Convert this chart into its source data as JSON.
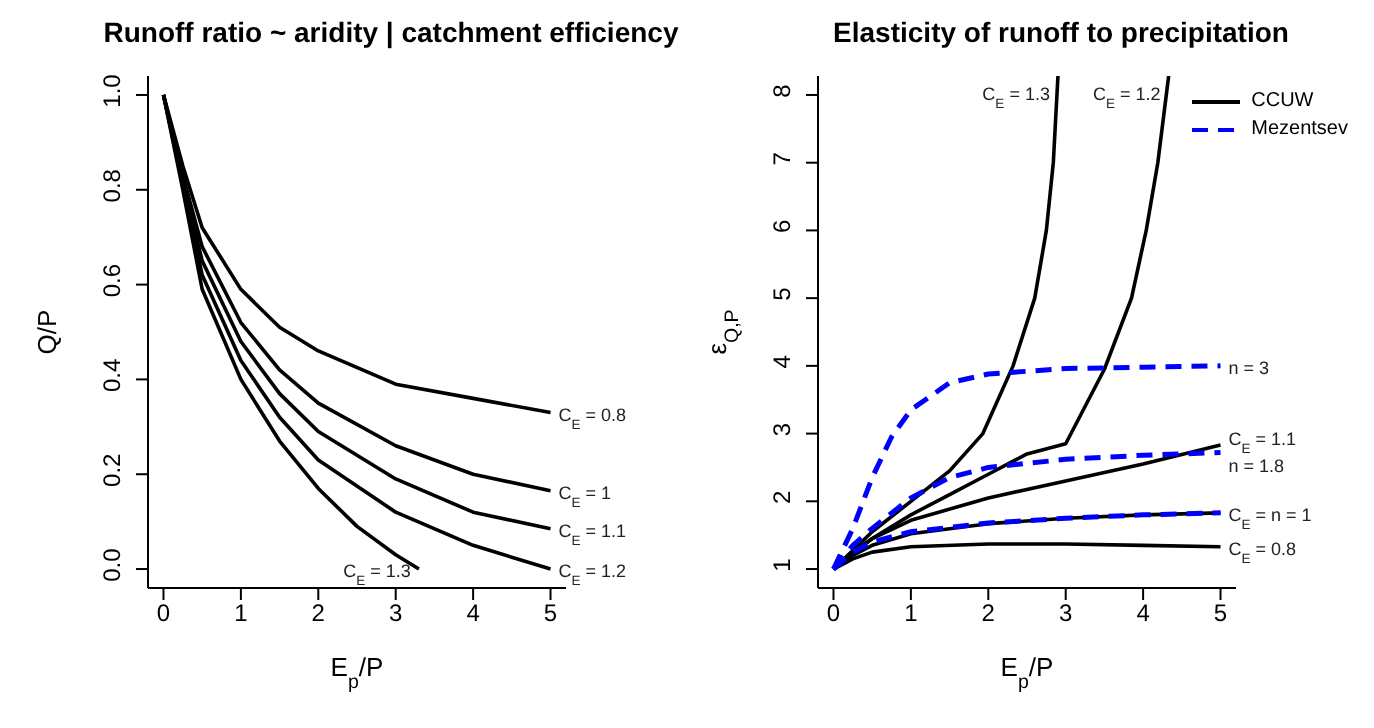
{
  "chart_data": [
    {
      "type": "line",
      "title": "Runoff ratio ~ aridity | catchment efficiency",
      "xlabel": "E$_{p}$/P",
      "ylabel": "Q/P",
      "xlim": [
        -0.2,
        5.2
      ],
      "ylim": [
        -0.04,
        1.04
      ],
      "xticks": [
        0,
        1,
        2,
        3,
        4,
        5
      ],
      "yticks": [
        {
          "value": 0,
          "label": "0.0"
        },
        {
          "value": 0.2,
          "label": "0.2"
        },
        {
          "value": 0.4,
          "label": "0.4"
        },
        {
          "value": 0.6,
          "label": "0.6"
        },
        {
          "value": 0.8,
          "label": "0.8"
        },
        {
          "value": 1,
          "label": "1.0"
        }
      ],
      "grid": false,
      "marker": "none",
      "annotations": [
        {
          "text": "C$_{E}$ = 0.8",
          "x": 5,
          "y": 0.33
        },
        {
          "text": "C$_{E}$ = 1",
          "x": 5,
          "y": 0.165
        },
        {
          "text": "C$_{E}$ = 1.1",
          "x": 5,
          "y": 0.085
        },
        {
          "text": "C$_{E}$ = 1.2",
          "x": 5,
          "y": 0
        },
        {
          "text": "C$_{E}$ = 1.3",
          "x": 3.3,
          "y": 0
        }
      ],
      "series": [
        {
          "color": "#000000",
          "line_style": "solid",
          "x": [
            0,
            0.25,
            0.5,
            1,
            1.5,
            2,
            3,
            4,
            5
          ],
          "values": [
            1,
            0.85,
            0.72,
            0.59,
            0.51,
            0.46,
            0.39,
            0.36,
            0.33
          ]
        },
        {
          "color": "#000000",
          "line_style": "solid",
          "x": [
            0,
            0.25,
            0.5,
            1,
            1.5,
            2,
            3,
            4,
            5
          ],
          "values": [
            1,
            0.83,
            0.68,
            0.52,
            0.42,
            0.35,
            0.26,
            0.2,
            0.165
          ]
        },
        {
          "color": "#000000",
          "line_style": "solid",
          "x": [
            0,
            0.25,
            0.5,
            1,
            1.5,
            2,
            3,
            4,
            5
          ],
          "values": [
            1,
            0.82,
            0.65,
            0.48,
            0.37,
            0.29,
            0.19,
            0.12,
            0.085
          ]
        },
        {
          "color": "#000000",
          "line_style": "solid",
          "x": [
            0,
            0.25,
            0.5,
            1,
            1.5,
            2,
            3,
            4,
            5
          ],
          "values": [
            1,
            0.81,
            0.62,
            0.44,
            0.32,
            0.23,
            0.12,
            0.05,
            0
          ]
        },
        {
          "color": "#000000",
          "line_style": "solid",
          "x": [
            0,
            0.25,
            0.5,
            1,
            1.5,
            2,
            2.5,
            3,
            3.3
          ],
          "values": [
            1,
            0.8,
            0.59,
            0.4,
            0.27,
            0.17,
            0.09,
            0.03,
            0
          ]
        }
      ]
    },
    {
      "type": "line",
      "title": "Elasticity of runoff to precipitation",
      "xlabel": "E$_{p}$/P",
      "ylabel": "ε$_{Q,P}$",
      "xlim": [
        -0.2,
        5.2
      ],
      "ylim": [
        0.72,
        8.28
      ],
      "xticks": [
        0,
        1,
        2,
        3,
        4,
        5
      ],
      "yticks": [
        1,
        2,
        3,
        4,
        5,
        6,
        7,
        8
      ],
      "grid": false,
      "marker": "none",
      "legend": "top right",
      "annotations": [
        {
          "text": "C$_{E}$ = 1.3",
          "x": 2.9,
          "y": 8.28
        },
        {
          "text": "C$_{E}$ = 1.2",
          "x": 4.33,
          "y": 8.28
        },
        {
          "text": "n = 3",
          "x": 5,
          "y": 4
        },
        {
          "text": "C$_{E}$ = 1.1",
          "x": 5,
          "y": 2.95
        },
        {
          "text": "n = 1.8",
          "x": 5,
          "y": 2.55
        },
        {
          "text": "C$_{E}$ =  n = 1",
          "x": 5,
          "y": 1.83
        },
        {
          "text": "C$_{E}$ = 0.8",
          "x": 5,
          "y": 1.33
        }
      ],
      "series": [
        {
          "name": "CCUW",
          "color": "#000000",
          "line_style": "solid",
          "x": [
            0,
            0.25,
            0.5,
            1,
            2,
            3,
            4,
            5
          ],
          "values": [
            1,
            1.15,
            1.25,
            1.33,
            1.37,
            1.37,
            1.35,
            1.33
          ]
        },
        {
          "color": "#000000",
          "line_style": "solid",
          "x": [
            0,
            0.25,
            0.5,
            1,
            2,
            3,
            4,
            5
          ],
          "values": [
            1,
            1.2,
            1.35,
            1.52,
            1.67,
            1.75,
            1.8,
            1.83
          ]
        },
        {
          "color": "#000000",
          "line_style": "solid",
          "x": [
            0,
            0.25,
            0.5,
            1,
            2,
            3,
            4,
            5
          ],
          "values": [
            1,
            1.25,
            1.45,
            1.72,
            2.05,
            2.3,
            2.55,
            2.83
          ]
        },
        {
          "color": "#000000",
          "line_style": "solid",
          "x": [
            0,
            0.5,
            1,
            1.5,
            2,
            2.5,
            3,
            3.5,
            3.85,
            4.04,
            4.19,
            4.33
          ],
          "values": [
            1,
            1.45,
            1.8,
            2.1,
            2.4,
            2.7,
            2.85,
            3.95,
            5,
            6,
            7,
            8.28
          ]
        },
        {
          "color": "#000000",
          "line_style": "solid",
          "x": [
            0,
            0.5,
            1,
            1.5,
            1.93,
            2.32,
            2.6,
            2.75,
            2.84,
            2.9
          ],
          "values": [
            1,
            1.55,
            2,
            2.45,
            3,
            4,
            5,
            6,
            7,
            8.28
          ]
        },
        {
          "name": "Mezentsev",
          "color": "#0000ff",
          "line_style": "dashed",
          "x": [
            0,
            0.25,
            0.5,
            1,
            2,
            3,
            4,
            5
          ],
          "values": [
            1,
            1.25,
            1.4,
            1.55,
            1.68,
            1.75,
            1.8,
            1.83
          ]
        },
        {
          "color": "#0000ff",
          "line_style": "dashed",
          "x": [
            0,
            0.25,
            0.5,
            1,
            1.5,
            2,
            3,
            4,
            5
          ],
          "values": [
            1,
            1.35,
            1.6,
            2.05,
            2.35,
            2.5,
            2.62,
            2.68,
            2.72
          ]
        },
        {
          "color": "#0000ff",
          "line_style": "dashed",
          "x": [
            0,
            0.25,
            0.5,
            0.75,
            1,
            1.5,
            2,
            3,
            4,
            5
          ],
          "values": [
            1,
            1.6,
            2.35,
            2.95,
            3.35,
            3.75,
            3.88,
            3.96,
            3.98,
            4
          ]
        }
      ]
    }
  ]
}
